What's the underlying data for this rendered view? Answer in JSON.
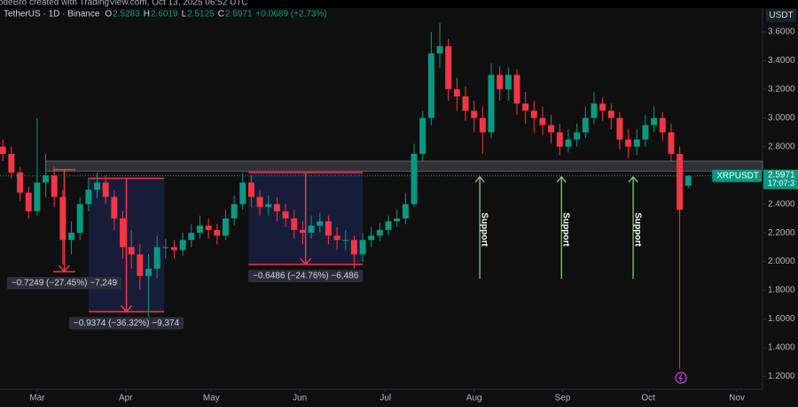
{
  "chart_data": {
    "type": "candlestick",
    "header": "odeBro created with TradingView.com, Oct 13, 2025 06:52 UTC",
    "symbol": "TetherUS · 1D · Binance",
    "ohlc_letters": [
      "O",
      "H",
      "L",
      "C"
    ],
    "change": "+0.0689 (+2.73%)",
    "currency": "USDT",
    "ticker": "XRPUSDT",
    "countdown": "17:07:3",
    "up_color": "#089981",
    "down_color": "#f23645",
    "x": [
      0,
      3,
      6,
      9,
      12,
      15,
      18,
      21,
      24,
      27,
      30,
      33,
      36,
      39,
      42,
      45,
      48,
      51,
      54,
      57,
      60,
      63,
      66,
      69,
      72,
      75,
      78,
      81,
      84,
      87,
      90,
      93,
      96,
      99,
      102,
      105,
      108,
      111,
      114,
      117,
      120,
      123,
      126,
      129,
      132,
      135,
      138,
      141,
      144,
      147,
      150,
      153,
      156,
      159,
      162,
      165,
      168,
      171,
      174,
      177,
      180,
      183,
      186,
      189,
      192,
      195,
      198,
      201,
      204,
      207,
      210,
      213,
      216,
      219,
      222,
      225,
      228,
      231,
      234,
      237,
      240
    ],
    "open": [
      2.8,
      2.75,
      2.62,
      2.48,
      2.35,
      2.55,
      2.6,
      2.45,
      2.15,
      2.2,
      2.4,
      2.5,
      2.55,
      2.45,
      2.3,
      2.1,
      2.05,
      1.9,
      1.95,
      2.1,
      2.1,
      2.08,
      2.15,
      2.2,
      2.25,
      2.22,
      2.18,
      2.3,
      2.4,
      2.55,
      2.45,
      2.38,
      2.4,
      2.35,
      2.3,
      2.22,
      2.2,
      2.25,
      2.28,
      2.18,
      2.15,
      2.15,
      2.05,
      2.15,
      2.18,
      2.22,
      2.28,
      2.3,
      2.4,
      2.75,
      3.0,
      3.45,
      3.5,
      3.2,
      3.15,
      3.05,
      3.0,
      2.9,
      3.3,
      3.2,
      3.3,
      3.1,
      3.05,
      3.0,
      2.95,
      2.9,
      2.8,
      2.85,
      2.9,
      3.0,
      3.1,
      3.05,
      3.0,
      2.85,
      2.8,
      2.85,
      2.95,
      3.0,
      2.9,
      2.75,
      2.5283
    ],
    "high": [
      2.85,
      2.8,
      2.66,
      2.52,
      3.0,
      2.75,
      2.66,
      2.5,
      2.28,
      2.45,
      2.58,
      2.62,
      2.6,
      2.5,
      2.35,
      2.22,
      2.12,
      2.05,
      2.18,
      2.16,
      2.15,
      2.2,
      2.26,
      2.32,
      2.3,
      2.26,
      2.36,
      2.46,
      2.62,
      2.6,
      2.5,
      2.46,
      2.45,
      2.4,
      2.36,
      2.28,
      2.32,
      2.34,
      2.32,
      2.24,
      2.22,
      2.18,
      2.2,
      2.24,
      2.27,
      2.32,
      2.36,
      2.48,
      2.82,
      3.05,
      3.6,
      3.66,
      3.55,
      3.28,
      3.22,
      3.12,
      3.08,
      3.38,
      3.36,
      3.35,
      3.34,
      3.18,
      3.12,
      3.08,
      3.02,
      2.96,
      2.92,
      2.96,
      3.08,
      3.18,
      3.14,
      3.1,
      3.04,
      2.92,
      2.92,
      3.02,
      3.08,
      3.04,
      2.96,
      2.8,
      2.6019
    ],
    "low": [
      2.7,
      2.58,
      2.42,
      2.3,
      2.32,
      2.45,
      2.38,
      1.98,
      2.05,
      2.15,
      2.35,
      2.44,
      2.4,
      2.22,
      2.02,
      1.95,
      1.8,
      1.62,
      1.88,
      2.02,
      2.02,
      2.04,
      2.1,
      2.16,
      2.16,
      2.12,
      2.15,
      2.25,
      2.36,
      2.38,
      2.32,
      2.32,
      2.28,
      2.24,
      2.16,
      2.12,
      2.16,
      2.2,
      2.12,
      2.08,
      2.08,
      1.95,
      2.0,
      2.1,
      2.14,
      2.18,
      2.24,
      2.26,
      2.38,
      2.7,
      2.95,
      3.35,
      3.12,
      3.05,
      2.98,
      2.9,
      2.75,
      2.86,
      3.12,
      3.12,
      3.02,
      2.96,
      2.9,
      2.88,
      2.82,
      2.74,
      2.76,
      2.8,
      2.86,
      2.96,
      2.98,
      2.92,
      2.78,
      2.72,
      2.74,
      2.8,
      2.9,
      2.84,
      2.7,
      1.25,
      2.5125
    ],
    "close": [
      2.75,
      2.62,
      2.48,
      2.35,
      2.55,
      2.6,
      2.45,
      2.15,
      2.2,
      2.4,
      2.5,
      2.55,
      2.45,
      2.3,
      2.1,
      2.05,
      1.9,
      1.95,
      2.1,
      2.1,
      2.08,
      2.15,
      2.2,
      2.25,
      2.22,
      2.18,
      2.3,
      2.4,
      2.55,
      2.45,
      2.38,
      2.4,
      2.35,
      2.3,
      2.22,
      2.2,
      2.25,
      2.28,
      2.18,
      2.15,
      2.15,
      2.05,
      2.15,
      2.18,
      2.22,
      2.28,
      2.3,
      2.4,
      2.75,
      3.0,
      3.45,
      3.5,
      3.2,
      3.15,
      3.05,
      3.0,
      2.9,
      3.3,
      3.2,
      3.3,
      3.1,
      3.05,
      3.0,
      2.95,
      2.9,
      2.8,
      2.85,
      2.9,
      3.0,
      3.1,
      3.05,
      3.0,
      2.85,
      2.8,
      2.85,
      2.95,
      3.0,
      2.9,
      2.75,
      2.36,
      2.5971
    ],
    "xlim": [
      -1,
      266
    ],
    "ylim": [
      1.11,
      3.76
    ],
    "xticks": [
      {
        "value": 12,
        "label": "Mar"
      },
      {
        "value": 43,
        "label": "Apr"
      },
      {
        "value": 73,
        "label": "May"
      },
      {
        "value": 104,
        "label": "Jun"
      },
      {
        "value": 134,
        "label": "Jul"
      },
      {
        "value": 165,
        "label": "Aug"
      },
      {
        "value": 196,
        "label": "Sep"
      },
      {
        "value": 226,
        "label": "Oct"
      },
      {
        "value": 257,
        "label": "Nov"
      }
    ],
    "yticks": [
      {
        "value": 1.2,
        "label": "1.2000"
      },
      {
        "value": 1.4,
        "label": "1.4000"
      },
      {
        "value": 1.6,
        "label": "1.6000"
      },
      {
        "value": 1.8,
        "label": "1.8000"
      },
      {
        "value": 2.0,
        "label": "2.0000"
      },
      {
        "value": 2.2,
        "label": "2.2000"
      },
      {
        "value": 2.4,
        "label": "2.4000"
      },
      {
        "value": 2.6,
        "label": "2.6000"
      },
      {
        "value": 2.8,
        "label": "2.8000"
      },
      {
        "value": 3.0,
        "label": "3.0000"
      },
      {
        "value": 3.2,
        "label": "3.2000"
      },
      {
        "value": 3.4,
        "label": "3.4000"
      },
      {
        "value": 3.6,
        "label": "3.6000"
      }
    ],
    "zone": {
      "x0": 15,
      "from": 2.63,
      "to": 2.7
    },
    "measures": [
      {
        "x": [
          17.6,
          25.4
        ],
        "from": 2.64,
        "to": 1.93,
        "filled": false,
        "label": "−0.7249 (−27.45%) −7,249"
      },
      {
        "x": [
          30,
          56.5
        ],
        "from": 2.58,
        "to": 1.65,
        "filled": true,
        "label": "−0.9374 (−36.32%) −9,374"
      },
      {
        "x": [
          86,
          126
        ],
        "from": 2.62,
        "to": 1.98,
        "filled": true,
        "label": "−0.6486 (−24.76%) −6,486"
      }
    ],
    "supports": [
      {
        "x": 167,
        "from": 1.88,
        "to": 2.59,
        "label": "Support"
      },
      {
        "x": 195.6,
        "from": 1.88,
        "to": 2.59,
        "label": "Support"
      },
      {
        "x": 220.7,
        "from": 1.88,
        "to": 2.59,
        "label": "Support"
      }
    ]
  }
}
